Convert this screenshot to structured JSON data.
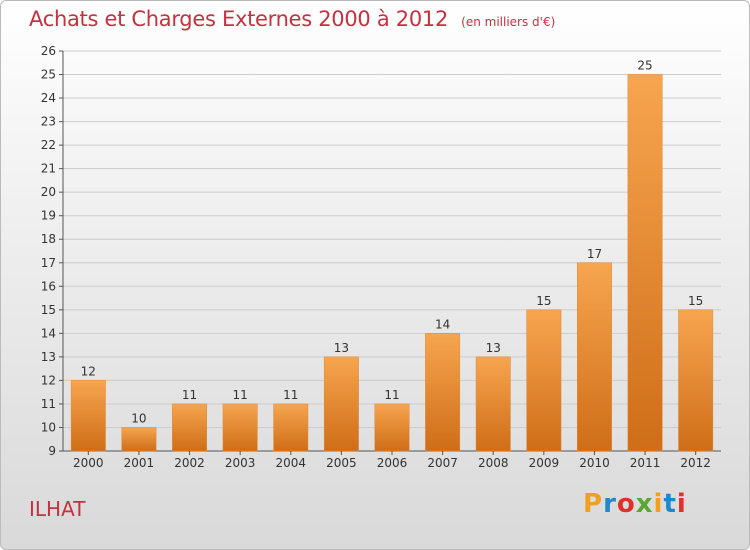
{
  "header": {
    "title": "Achats et Charges Externes 2000 à 2012",
    "unit_note": "(en milliers d'€)"
  },
  "footer": {
    "place": "ILHAT",
    "logo_text": "Proxiti",
    "logo_colors": [
      "#f0a020",
      "#1e88c8",
      "#e0302a",
      "#5aa632",
      "#f0a020",
      "#1e88c8",
      "#e0302a"
    ]
  },
  "colors": {
    "accent_text": "#c8303f",
    "bar_light": "#f7a54f",
    "bar_dark": "#cf6d18",
    "axis": "#555555",
    "grid": "#cccccc"
  },
  "chart_data": {
    "type": "bar",
    "title": "Achats et Charges Externes 2000 à 2012",
    "subtitle": "(en milliers d'€)",
    "categories": [
      "2000",
      "2001",
      "2002",
      "2003",
      "2004",
      "2005",
      "2006",
      "2007",
      "2008",
      "2009",
      "2010",
      "2011",
      "2012"
    ],
    "values": [
      12,
      10,
      11,
      11,
      11,
      13,
      11,
      14,
      13,
      15,
      17,
      25,
      15
    ],
    "data_labels": [
      "12",
      "10",
      "11",
      "11",
      "11",
      "13",
      "11",
      "14",
      "13",
      "15",
      "17",
      "25",
      "15"
    ],
    "xlabel": "",
    "ylabel": "",
    "ylim": [
      9,
      26
    ],
    "yticks": [
      9,
      10,
      11,
      12,
      13,
      14,
      15,
      16,
      17,
      18,
      19,
      20,
      21,
      22,
      23,
      24,
      25,
      26
    ],
    "grid": true,
    "legend": "none"
  }
}
